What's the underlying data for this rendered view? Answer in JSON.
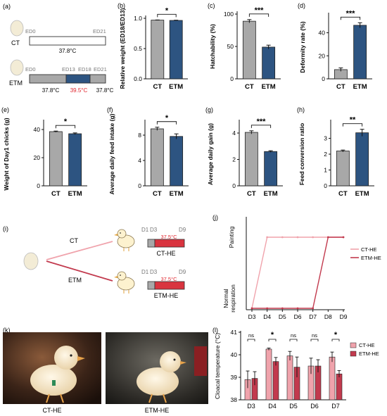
{
  "panels": {
    "a": {
      "letter": "(a)",
      "ct": {
        "group": "CT",
        "start": "ED0",
        "end": "ED21",
        "temp": "37.8°C"
      },
      "etm": {
        "group": "ETM",
        "start": "ED0",
        "m1": "ED13",
        "m2": "ED18",
        "end": "ED21",
        "temp1": "37.8°C",
        "temp2": "39.5°C",
        "temp3": "37.8°C"
      }
    },
    "i": {
      "letter": "(i)",
      "ct_label": "CT",
      "etm_label": "ETM",
      "ct_box": {
        "d1": "D1",
        "d3": "D3",
        "d9": "D9",
        "temp": "37.5°C",
        "name": "CT-HE"
      },
      "etm_box": {
        "d1": "D1",
        "d3": "D3",
        "d9": "D9",
        "temp": "37.5°C",
        "name": "ETM-HE"
      }
    },
    "k": {
      "letter": "(k)",
      "left_caption": "CT-HE",
      "right_caption": "ETM-HE"
    }
  },
  "colors": {
    "ct": "#a8a8a8",
    "etm": "#2d5481",
    "heat": "#d9343f",
    "ct_he": "#f0a3ac",
    "etm_he": "#c23a4e"
  },
  "chart_data": [
    {
      "id": "b",
      "letter": "(b)",
      "type": "bar",
      "ylabel": "Relative weight (ED18/ED13)",
      "categories": [
        "CT",
        "ETM"
      ],
      "values": [
        0.97,
        0.965
      ],
      "errors": [
        0.003,
        0.004
      ],
      "ylim": [
        0,
        1.0
      ],
      "yticks": [
        "0.0",
        "0.5",
        "1.0"
      ],
      "tickvals": [
        0,
        0.5,
        1.0
      ],
      "sig": "*"
    },
    {
      "id": "c",
      "letter": "(c)",
      "type": "bar",
      "ylabel": "Hatchability (%)",
      "categories": [
        "CT",
        "ETM"
      ],
      "values": [
        89,
        49
      ],
      "errors": [
        2.5,
        3
      ],
      "ylim": [
        0,
        100
      ],
      "yticks": [
        "0",
        "50",
        "100"
      ],
      "tickvals": [
        0,
        50,
        100
      ],
      "sig": "***"
    },
    {
      "id": "d",
      "letter": "(d)",
      "type": "bar",
      "ylabel": "Deformity rate (%)",
      "categories": [
        "CT",
        "ETM"
      ],
      "values": [
        8,
        46.5
      ],
      "errors": [
        1.5,
        2.2
      ],
      "ylim": [
        0,
        55
      ],
      "yticks": [
        "0",
        "20",
        "40"
      ],
      "tickvals": [
        0,
        20,
        40
      ],
      "sig": "***"
    },
    {
      "id": "e",
      "letter": "(e)",
      "type": "bar",
      "ylabel": "Weight of Day1 chicks (g)",
      "categories": [
        "CT",
        "ETM"
      ],
      "values": [
        38.5,
        37
      ],
      "errors": [
        0.4,
        0.6
      ],
      "ylim": [
        0,
        45
      ],
      "yticks": [
        "0",
        "20",
        "40"
      ],
      "tickvals": [
        0,
        20,
        40
      ],
      "sig": "*"
    },
    {
      "id": "f",
      "letter": "(f)",
      "type": "bar",
      "ylabel": "Average daily feed intake (g)",
      "categories": [
        "CT",
        "ETM"
      ],
      "values": [
        9,
        7.8
      ],
      "errors": [
        0.25,
        0.4
      ],
      "ylim": [
        0,
        10
      ],
      "yticks": [
        "0",
        "4",
        "8"
      ],
      "tickvals": [
        0,
        4,
        8
      ],
      "sig": "*"
    },
    {
      "id": "g",
      "letter": "(g)",
      "type": "bar",
      "ylabel": "Average daily gain (g)",
      "categories": [
        "CT",
        "ETM"
      ],
      "values": [
        4.05,
        2.6
      ],
      "errors": [
        0.12,
        0.06
      ],
      "ylim": [
        0,
        4.8
      ],
      "yticks": [
        "0",
        "2",
        "4"
      ],
      "tickvals": [
        0,
        2,
        4
      ],
      "sig": "***"
    },
    {
      "id": "h",
      "letter": "(h)",
      "type": "bar",
      "ylabel": "Feed conversion ratio",
      "categories": [
        "CT",
        "ETM"
      ],
      "values": [
        2.2,
        3.35
      ],
      "errors": [
        0.06,
        0.22
      ],
      "ylim": [
        0,
        4
      ],
      "yticks": [
        "0",
        "1",
        "2",
        "3"
      ],
      "tickvals": [
        0,
        1,
        2,
        3
      ],
      "sig": "**"
    },
    {
      "id": "j",
      "letter": "(j)",
      "type": "line",
      "x": [
        "D3",
        "D4",
        "D5",
        "D6",
        "D7",
        "D8",
        "D9"
      ],
      "ytick_top": "Painting",
      "ytick_bottom": "Normal\nrespiration",
      "series": [
        {
          "name": "CT-HE",
          "values": [
            0,
            1,
            1,
            1,
            1,
            1,
            1
          ]
        },
        {
          "name": "ETM-HE",
          "values": [
            0,
            0,
            0,
            0,
            0,
            1,
            1
          ]
        }
      ]
    },
    {
      "id": "l",
      "letter": "(l)",
      "type": "bar",
      "ylabel": "Cloacal temperature (°C)",
      "categories": [
        "D3",
        "D4",
        "D5",
        "D6",
        "D7"
      ],
      "ylim": [
        38,
        41
      ],
      "yticks": [
        "38",
        "39",
        "40",
        "41"
      ],
      "tickvals": [
        38,
        39,
        40,
        41
      ],
      "sig": [
        "ns",
        "*",
        "ns",
        "ns",
        "*"
      ],
      "series": [
        {
          "name": "CT-HE",
          "values": [
            38.9,
            40.25,
            39.95,
            39.5,
            39.9
          ],
          "errors": [
            0.38,
            0.05,
            0.2,
            0.35,
            0.22
          ]
        },
        {
          "name": "ETM-HE",
          "values": [
            38.95,
            39.7,
            39.45,
            39.5,
            39.15
          ],
          "errors": [
            0.3,
            0.18,
            0.45,
            0.28,
            0.15
          ]
        }
      ]
    }
  ]
}
